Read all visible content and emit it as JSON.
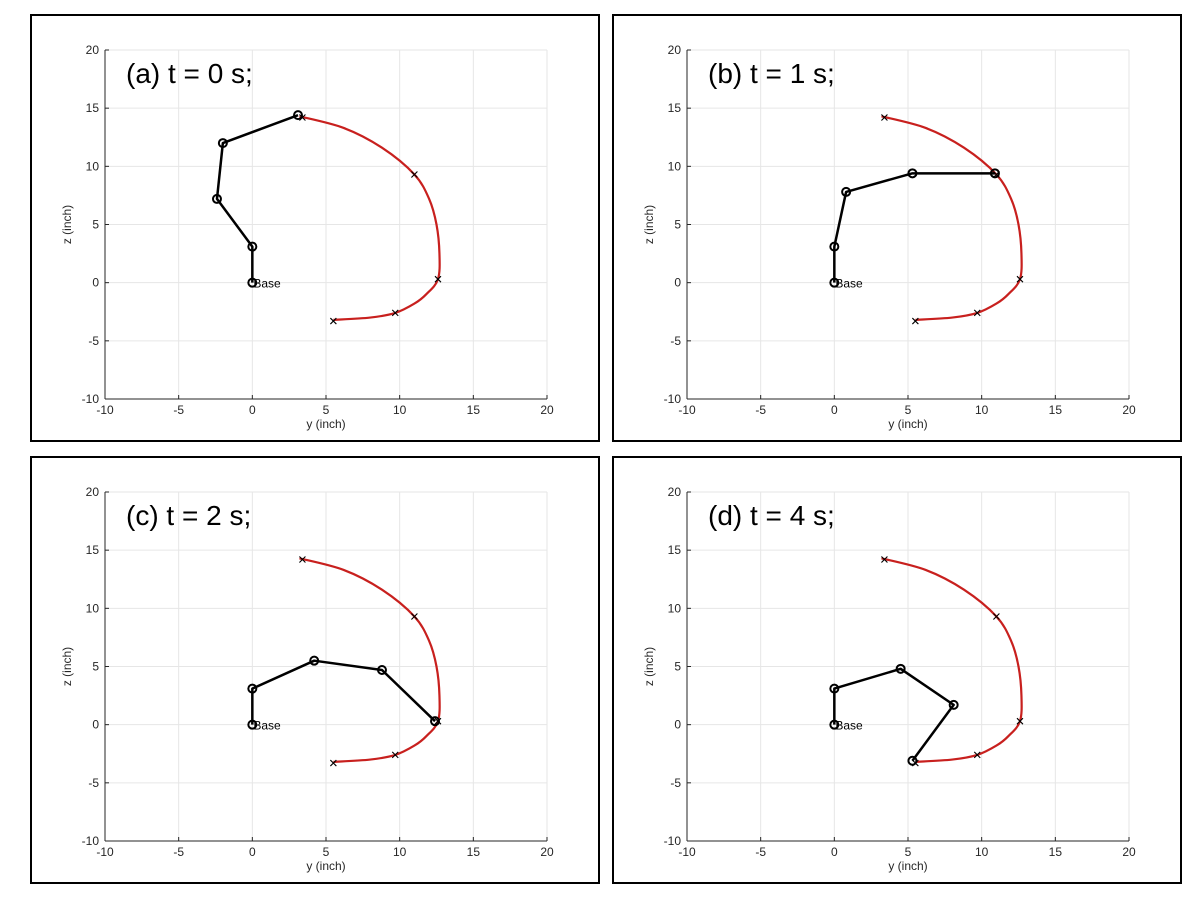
{
  "chart_data": [
    {
      "type": "line",
      "panel_label": "(a) t = 0 s;",
      "xlabel": "y (inch)",
      "ylabel": "z (inch)",
      "xlim": [
        -10,
        20
      ],
      "ylim": [
        -10,
        20
      ],
      "xticks": [
        "-10",
        "-5",
        "0",
        "5",
        "10",
        "15",
        "20"
      ],
      "yticks": [
        "-10",
        "-5",
        "0",
        "5",
        "10",
        "15",
        "20"
      ],
      "grid": true,
      "colors": {
        "arm": "#000000",
        "trajectory": "#c8201e"
      },
      "base_label": "Base",
      "arm_joints": [
        [
          0,
          0
        ],
        [
          0,
          3.1
        ],
        [
          -2.4,
          7.2
        ],
        [
          -2,
          12
        ],
        [
          3.1,
          14.4
        ]
      ],
      "waypoints": [
        [
          3.4,
          14.2
        ],
        [
          11,
          9.3
        ],
        [
          12.6,
          0.3
        ],
        [
          9.7,
          -2.6
        ],
        [
          5.5,
          -3.3
        ]
      ],
      "trajectory": [
        [
          3.2,
          14.3
        ],
        [
          6.2,
          13.3
        ],
        [
          8.8,
          11.6
        ],
        [
          11,
          9.3
        ],
        [
          12,
          7.2
        ],
        [
          12.5,
          5
        ],
        [
          12.7,
          2.5
        ],
        [
          12.6,
          0.3
        ],
        [
          11.8,
          -1
        ],
        [
          11,
          -1.8
        ],
        [
          9.7,
          -2.6
        ],
        [
          8,
          -3
        ],
        [
          5.5,
          -3.2
        ]
      ]
    },
    {
      "type": "line",
      "panel_label": "(b) t = 1 s;",
      "xlabel": "y (inch)",
      "ylabel": "z (inch)",
      "xlim": [
        -10,
        20
      ],
      "ylim": [
        -10,
        20
      ],
      "xticks": [
        "-10",
        "-5",
        "0",
        "5",
        "10",
        "15",
        "20"
      ],
      "yticks": [
        "-10",
        "-5",
        "0",
        "5",
        "10",
        "15",
        "20"
      ],
      "grid": true,
      "colors": {
        "arm": "#000000",
        "trajectory": "#c8201e"
      },
      "base_label": "Base",
      "arm_joints": [
        [
          0,
          0
        ],
        [
          0,
          3.1
        ],
        [
          0.8,
          7.8
        ],
        [
          5.3,
          9.4
        ],
        [
          10.9,
          9.4
        ]
      ],
      "waypoints": [
        [
          3.4,
          14.2
        ],
        [
          11,
          9.3
        ],
        [
          12.6,
          0.3
        ],
        [
          9.7,
          -2.6
        ],
        [
          5.5,
          -3.3
        ]
      ],
      "trajectory": [
        [
          3.2,
          14.3
        ],
        [
          6.2,
          13.3
        ],
        [
          8.8,
          11.6
        ],
        [
          11,
          9.3
        ],
        [
          12,
          7.2
        ],
        [
          12.5,
          5
        ],
        [
          12.7,
          2.5
        ],
        [
          12.6,
          0.3
        ],
        [
          11.8,
          -1
        ],
        [
          11,
          -1.8
        ],
        [
          9.7,
          -2.6
        ],
        [
          8,
          -3
        ],
        [
          5.5,
          -3.2
        ]
      ]
    },
    {
      "type": "line",
      "panel_label": "(c) t = 2 s;",
      "xlabel": "y (inch)",
      "ylabel": "z (inch)",
      "xlim": [
        -10,
        20
      ],
      "ylim": [
        -10,
        20
      ],
      "xticks": [
        "-10",
        "-5",
        "0",
        "5",
        "10",
        "15",
        "20"
      ],
      "yticks": [
        "-10",
        "-5",
        "0",
        "5",
        "10",
        "15",
        "20"
      ],
      "grid": true,
      "colors": {
        "arm": "#000000",
        "trajectory": "#c8201e"
      },
      "base_label": "Base",
      "arm_joints": [
        [
          0,
          0
        ],
        [
          0,
          3.1
        ],
        [
          4.2,
          5.5
        ],
        [
          8.8,
          4.7
        ],
        [
          12.4,
          0.3
        ]
      ],
      "waypoints": [
        [
          3.4,
          14.2
        ],
        [
          11,
          9.3
        ],
        [
          12.6,
          0.3
        ],
        [
          9.7,
          -2.6
        ],
        [
          5.5,
          -3.3
        ]
      ],
      "trajectory": [
        [
          3.2,
          14.3
        ],
        [
          6.2,
          13.3
        ],
        [
          8.8,
          11.6
        ],
        [
          11,
          9.3
        ],
        [
          12,
          7.2
        ],
        [
          12.5,
          5
        ],
        [
          12.7,
          2.5
        ],
        [
          12.6,
          0.3
        ],
        [
          11.8,
          -1
        ],
        [
          11,
          -1.8
        ],
        [
          9.7,
          -2.6
        ],
        [
          8,
          -3
        ],
        [
          5.5,
          -3.2
        ]
      ]
    },
    {
      "type": "line",
      "panel_label": "(d) t = 4 s;",
      "xlabel": "y (inch)",
      "ylabel": "z (inch)",
      "xlim": [
        -10,
        20
      ],
      "ylim": [
        -10,
        20
      ],
      "xticks": [
        "-10",
        "-5",
        "0",
        "5",
        "10",
        "15",
        "20"
      ],
      "yticks": [
        "-10",
        "-5",
        "0",
        "5",
        "10",
        "15",
        "20"
      ],
      "grid": true,
      "colors": {
        "arm": "#000000",
        "trajectory": "#c8201e"
      },
      "base_label": "Base",
      "arm_joints": [
        [
          0,
          0
        ],
        [
          0,
          3.1
        ],
        [
          4.5,
          4.8
        ],
        [
          8.1,
          1.7
        ],
        [
          5.3,
          -3.1
        ]
      ],
      "waypoints": [
        [
          3.4,
          14.2
        ],
        [
          11,
          9.3
        ],
        [
          12.6,
          0.3
        ],
        [
          9.7,
          -2.6
        ],
        [
          5.5,
          -3.3
        ]
      ],
      "trajectory": [
        [
          3.2,
          14.3
        ],
        [
          6.2,
          13.3
        ],
        [
          8.8,
          11.6
        ],
        [
          11,
          9.3
        ],
        [
          12,
          7.2
        ],
        [
          12.5,
          5
        ],
        [
          12.7,
          2.5
        ],
        [
          12.6,
          0.3
        ],
        [
          11.8,
          -1
        ],
        [
          11,
          -1.8
        ],
        [
          9.7,
          -2.6
        ],
        [
          8,
          -3
        ],
        [
          5.5,
          -3.2
        ]
      ]
    }
  ]
}
